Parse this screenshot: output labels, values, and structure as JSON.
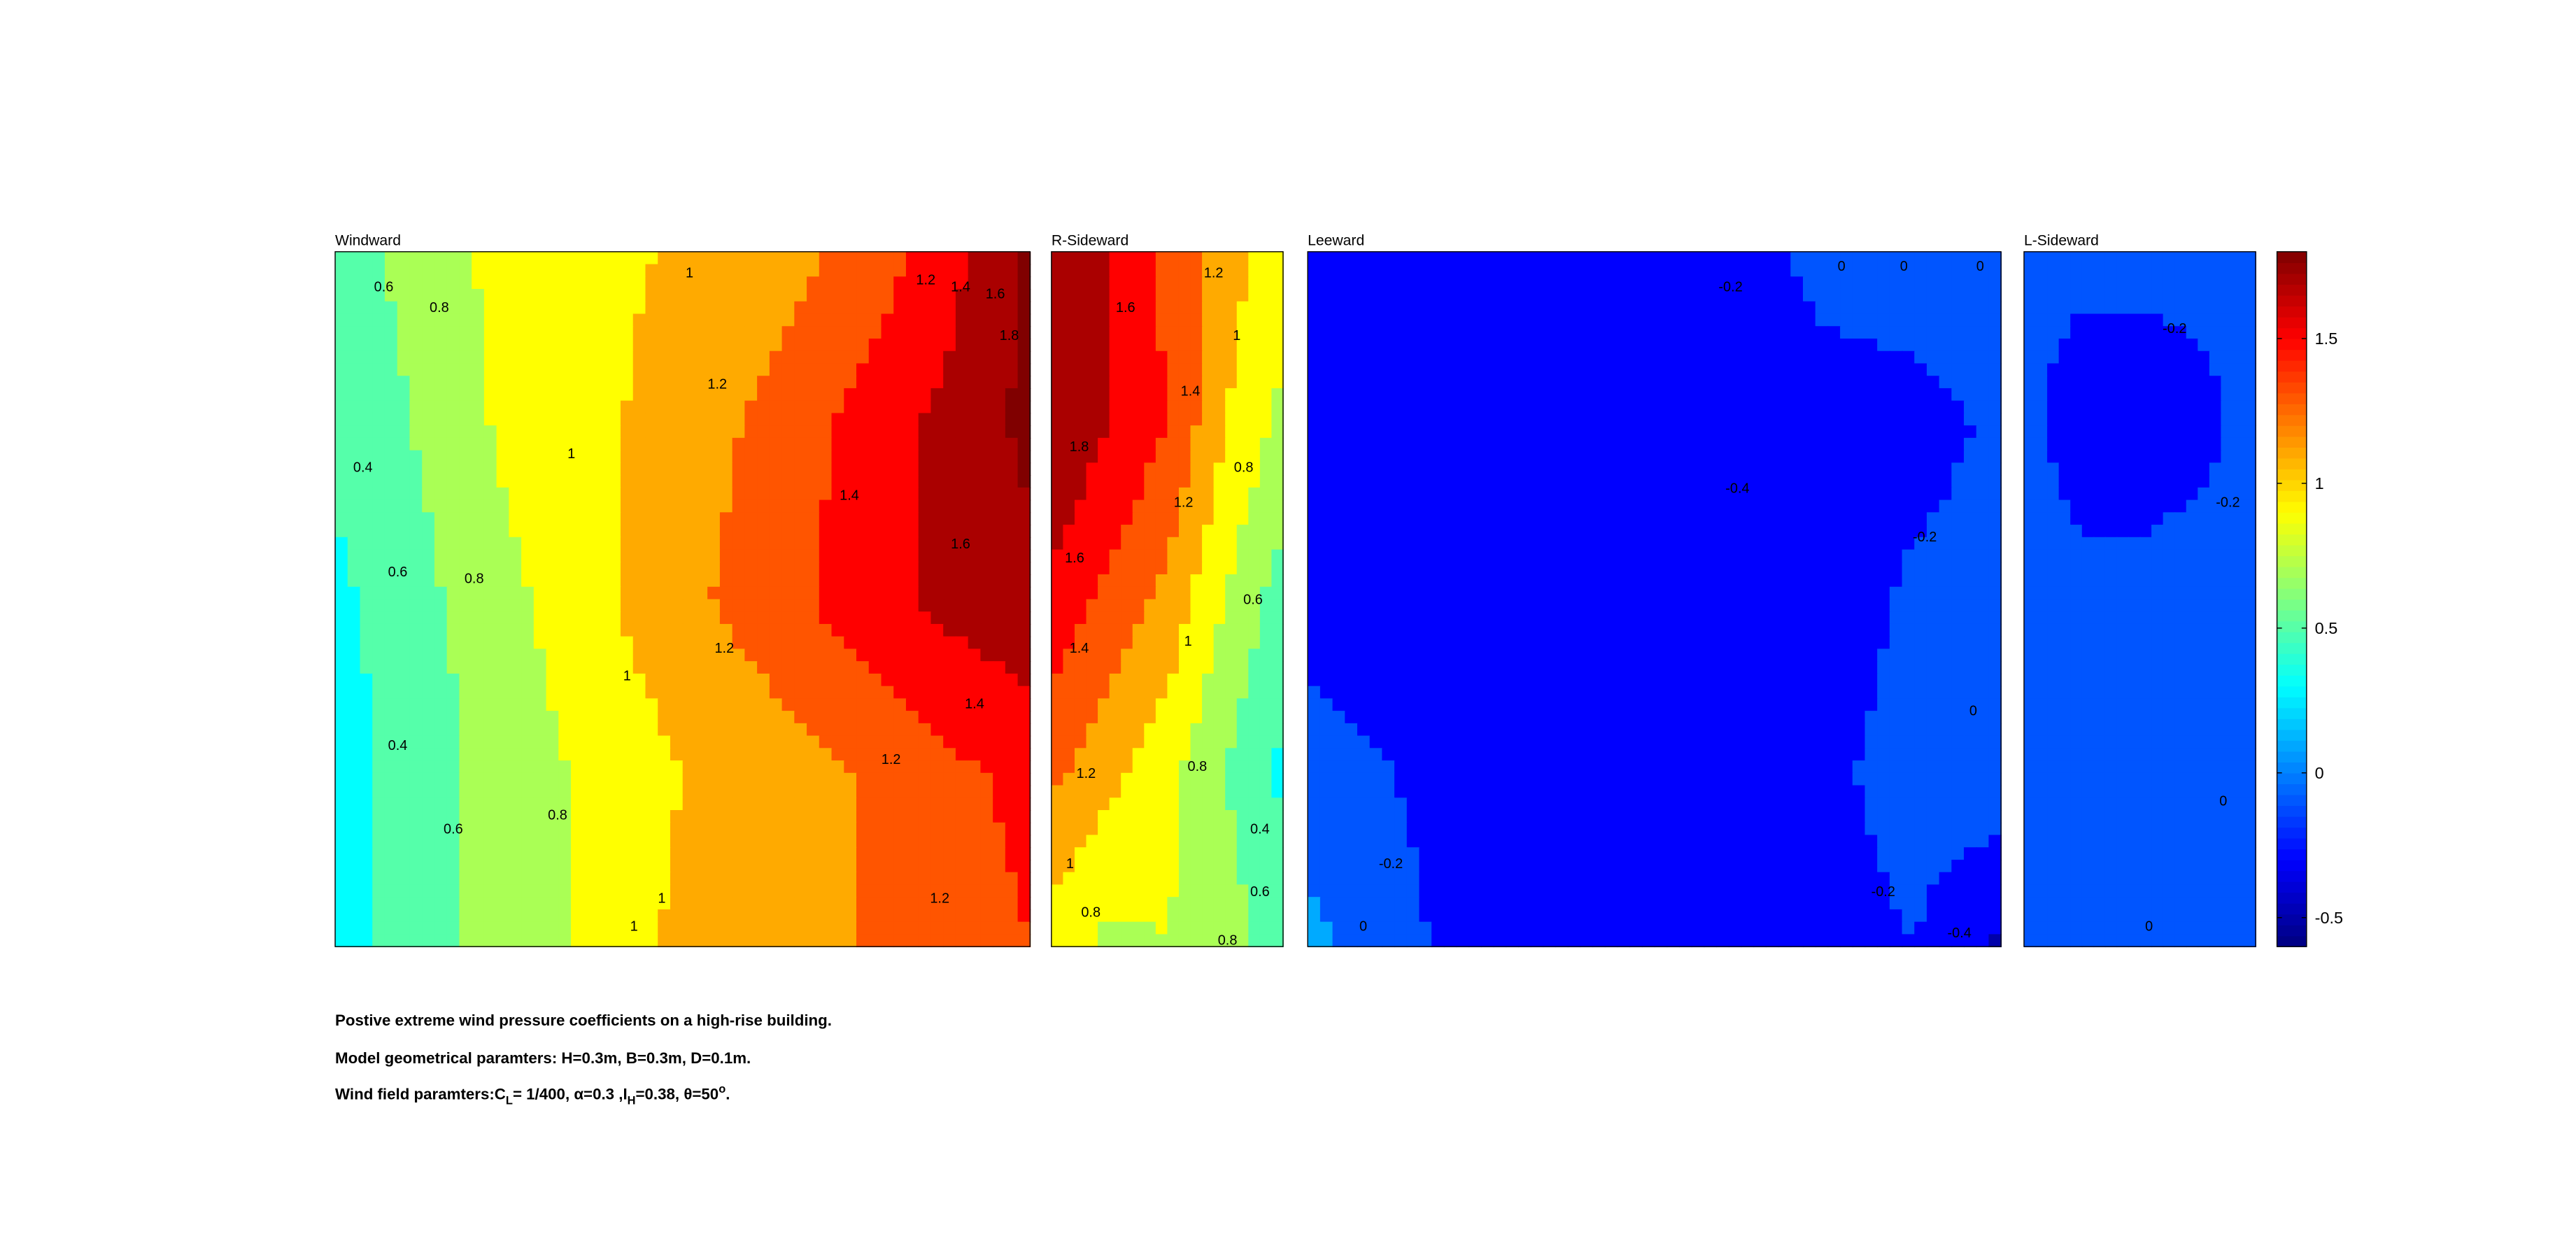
{
  "chart_data": [
    {
      "type": "heatmap",
      "title": "Windward",
      "grid_x": [
        0,
        0.125,
        0.25,
        0.375,
        0.5,
        0.625,
        0.75,
        0.875,
        1
      ],
      "grid_y": [
        0,
        0.25,
        0.5,
        0.75,
        1
      ],
      "values": [
        [
          0.5,
          0.68,
          0.88,
          0.95,
          1.02,
          1.1,
          1.25,
          1.5,
          1.85
        ],
        [
          0.45,
          0.62,
          0.85,
          0.95,
          1.1,
          1.25,
          1.45,
          1.65,
          1.85
        ],
        [
          0.35,
          0.55,
          0.75,
          0.95,
          1.15,
          1.3,
          1.5,
          1.65,
          1.75
        ],
        [
          0.3,
          0.5,
          0.7,
          0.85,
          1.0,
          1.1,
          1.2,
          1.35,
          1.45
        ],
        [
          0.3,
          0.5,
          0.7,
          0.85,
          1.05,
          1.15,
          1.2,
          1.3,
          1.4
        ]
      ],
      "contour_labels": [
        "0.6",
        "0.8",
        "1",
        "1.2",
        "1.4",
        "1.6",
        "1.8",
        "0.4",
        "1.2",
        "1",
        "1.4",
        "0.6",
        "0.8",
        "1.6",
        "1.2",
        "1",
        "0.4",
        "1.4",
        "1.2",
        "0.6",
        "0.8",
        "1",
        "1",
        "1.2"
      ]
    },
    {
      "type": "heatmap",
      "title": "R-Sideward",
      "grid_x": [
        0,
        0.25,
        0.5,
        0.75,
        1
      ],
      "grid_y": [
        0,
        0.25,
        0.5,
        0.75,
        1
      ],
      "values": [
        [
          1.8,
          1.6,
          1.35,
          1.1,
          0.85
        ],
        [
          1.8,
          1.6,
          1.4,
          1.0,
          0.75
        ],
        [
          1.55,
          1.35,
          1.15,
          0.8,
          0.5
        ],
        [
          1.25,
          1.05,
          0.85,
          0.6,
          0.35
        ],
        [
          0.9,
          0.75,
          0.8,
          0.7,
          0.5
        ]
      ],
      "contour_labels": [
        "1.6",
        "1.2",
        "1",
        "1.8",
        "1.4",
        "0.8",
        "1.2",
        "1.6",
        "0.6",
        "1.4",
        "1",
        "1.2",
        "0.8",
        "0.4",
        "1",
        "0.6",
        "0.8",
        "0.8"
      ]
    },
    {
      "type": "heatmap",
      "title": "Leeward",
      "grid_x": [
        0,
        0.125,
        0.25,
        0.375,
        0.5,
        0.625,
        0.75,
        0.875,
        1
      ],
      "grid_y": [
        0,
        0.25,
        0.5,
        0.75,
        1
      ],
      "values": [
        [
          -0.35,
          -0.35,
          -0.35,
          -0.35,
          -0.35,
          -0.3,
          -0.12,
          -0.05,
          -0.05
        ],
        [
          -0.35,
          -0.35,
          -0.35,
          -0.35,
          -0.38,
          -0.35,
          -0.3,
          -0.3,
          -0.15
        ],
        [
          -0.3,
          -0.35,
          -0.35,
          -0.35,
          -0.35,
          -0.35,
          -0.35,
          -0.15,
          -0.1
        ],
        [
          -0.1,
          -0.2,
          -0.35,
          -0.35,
          -0.35,
          -0.35,
          -0.25,
          -0.1,
          -0.05
        ],
        [
          0.05,
          -0.1,
          -0.35,
          -0.35,
          -0.35,
          -0.35,
          -0.3,
          -0.2,
          -0.45
        ]
      ],
      "contour_labels": [
        "0",
        "0",
        "0",
        "-0.2",
        "-0.4",
        "-0.2",
        "0",
        "-0.2",
        "-0.2",
        "0",
        "-0.4"
      ]
    },
    {
      "type": "heatmap",
      "title": "L-Sideward",
      "grid_x": [
        0,
        0.25,
        0.5,
        0.75,
        1
      ],
      "grid_y": [
        0,
        0.25,
        0.5,
        0.75,
        1
      ],
      "values": [
        [
          -0.15,
          -0.15,
          -0.15,
          -0.15,
          -0.15
        ],
        [
          -0.15,
          -0.3,
          -0.3,
          -0.25,
          -0.15
        ],
        [
          -0.1,
          -0.15,
          -0.15,
          -0.12,
          -0.1
        ],
        [
          0.0,
          -0.05,
          -0.1,
          -0.1,
          -0.05
        ],
        [
          0.0,
          0.0,
          0.0,
          -0.05,
          -0.1
        ]
      ],
      "contour_labels": [
        "-0.2",
        "-0.2",
        "0",
        "0"
      ]
    }
  ],
  "colorbar": {
    "colormap": "jet",
    "clim": [
      -0.6,
      1.8
    ],
    "contour_step": 0.2,
    "ticks": [
      1.5,
      1,
      0.5,
      0,
      -0.5
    ],
    "tick_labels": [
      "1.5",
      "1",
      "0.5",
      "0",
      "-0.5"
    ]
  },
  "caption": {
    "line1": "Postive extreme  wind pressure coefficients on a high-rise building.",
    "line2": "Model geometrical paramters: H=0.3m, B=0.3m, D=0.1m.",
    "line3_prefix": "Wind field paramters:C",
    "line3_sub1": "L",
    "line3_mid1": "= 1/400, α=0.3 ,I",
    "line3_sub2": "H",
    "line3_mid2": "=0.38, θ=50",
    "line3_sup": "o",
    "line3_end": "."
  }
}
